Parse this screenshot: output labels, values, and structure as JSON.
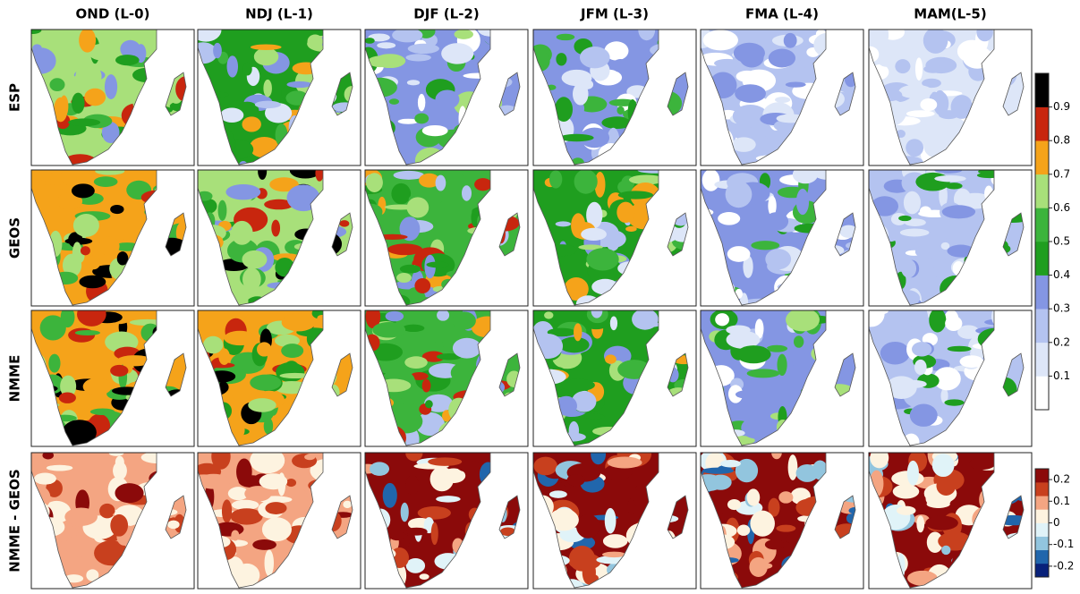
{
  "columns": [
    "OND (L-0)",
    "NDJ (L-1)",
    "DJF (L-2)",
    "JFM (L-3)",
    "FMA (L-4)",
    "MAM(L-5)"
  ],
  "rows": [
    "ESP",
    "GEOS",
    "NMME",
    "NMME - GEOS"
  ],
  "colorbars": [
    {
      "lim": [
        0,
        1
      ],
      "ticks": [
        0.1,
        0.2,
        0.3,
        0.4,
        0.5,
        0.6,
        0.7,
        0.8,
        0.9
      ],
      "colors": [
        "#ffffff",
        "#dde6f8",
        "#b4c3f0",
        "#8496e3",
        "#1f9e1f",
        "#3cb43c",
        "#a8e07a",
        "#f5a31a",
        "#c8260e",
        "#000000"
      ]
    },
    {
      "lim": [
        -0.25,
        0.25
      ],
      "ticks": [
        0.2,
        0.1,
        0,
        -0.1,
        -0.2
      ],
      "colors": [
        "#08217a",
        "#2166ac",
        "#92c5de",
        "#e0f3f8",
        "#fdf3e0",
        "#f4a582",
        "#c8401e",
        "#8b0a0a"
      ]
    }
  ]
}
